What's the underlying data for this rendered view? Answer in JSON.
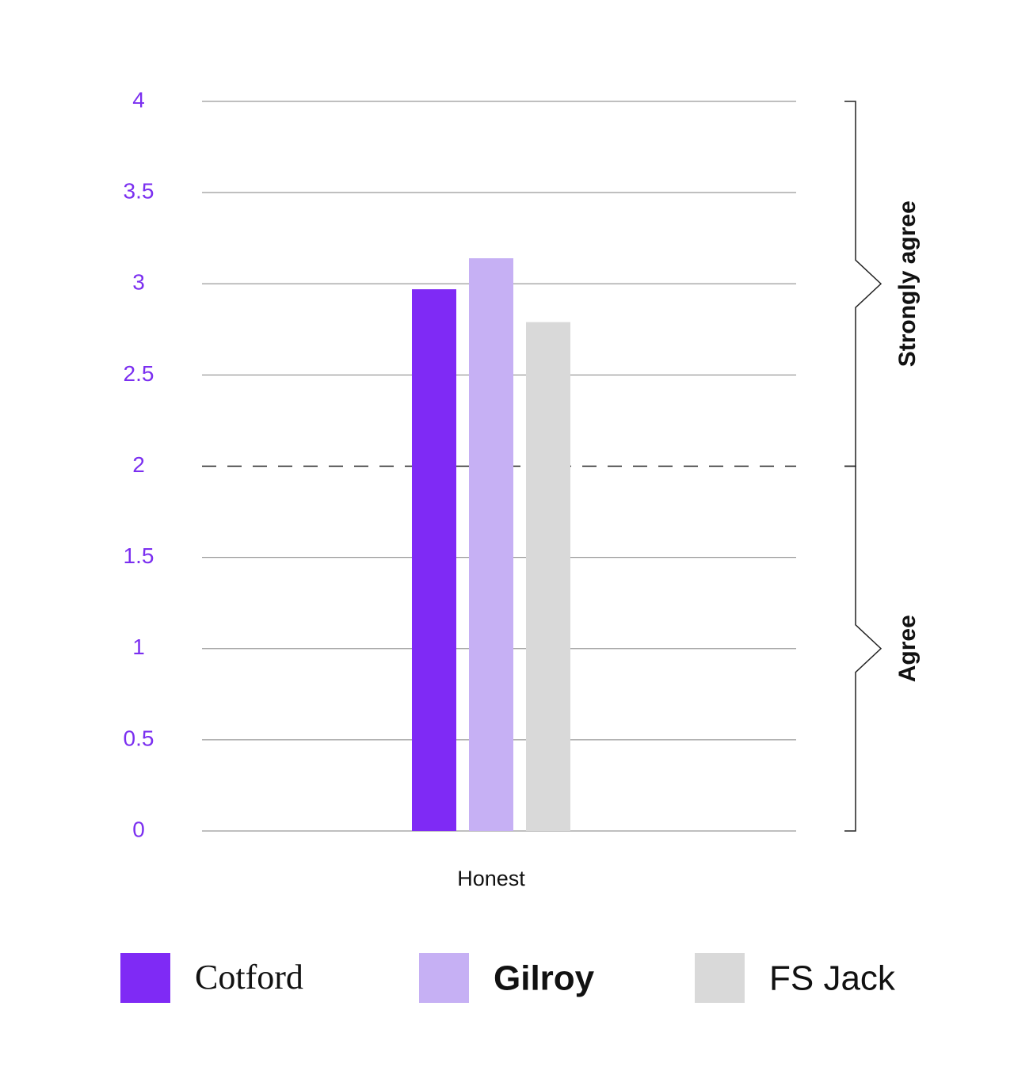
{
  "chart_data": {
    "type": "bar",
    "categories": [
      "Honest"
    ],
    "series": [
      {
        "name": "Cotford",
        "color": "#7f2af5",
        "values": [
          2.97
        ]
      },
      {
        "name": "Gilroy",
        "color": "#c6b0f4",
        "values": [
          3.14
        ]
      },
      {
        "name": "FS Jack",
        "color": "#d9d9d9",
        "values": [
          2.79
        ]
      }
    ],
    "ylim": [
      0,
      4
    ],
    "yticks": [
      0,
      0.5,
      1,
      1.5,
      2,
      2.5,
      3,
      3.5,
      4
    ],
    "grid": true,
    "threshold": 2,
    "bands": [
      {
        "label": "Agree",
        "from": 0,
        "to": 2
      },
      {
        "label": "Strongly agree",
        "from": 2,
        "to": 4
      }
    ],
    "legend": "bottom"
  }
}
